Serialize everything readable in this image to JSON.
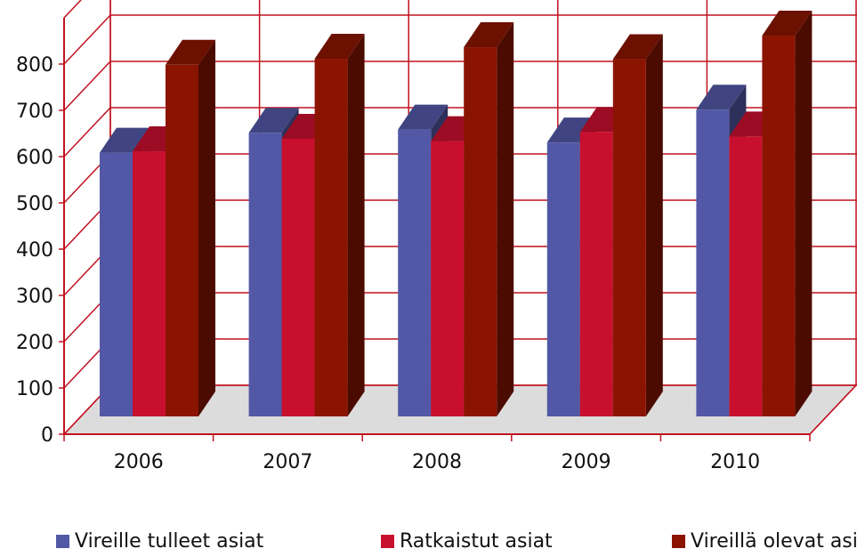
{
  "chart_data": {
    "type": "bar",
    "categories": [
      "2006",
      "2007",
      "2008",
      "2009",
      "2010"
    ],
    "series": [
      {
        "name": "Vireille tulleet asiat",
        "values": [
          570,
          613,
          620,
          592,
          663
        ],
        "color": "#5258a6"
      },
      {
        "name": "Ratkaistut asiat",
        "values": [
          573,
          600,
          595,
          615,
          605
        ],
        "color": "#c8102e"
      },
      {
        "name": "Vireillä olevat asiat",
        "values": [
          760,
          773,
          798,
          772,
          823
        ],
        "color": "#8b1400"
      }
    ],
    "yticks": [
      "0",
      "100",
      "200",
      "300",
      "400",
      "500",
      "600",
      "700",
      "800"
    ],
    "ylim": [
      0,
      900
    ],
    "gridlines": true,
    "legend_position": "bottom"
  }
}
